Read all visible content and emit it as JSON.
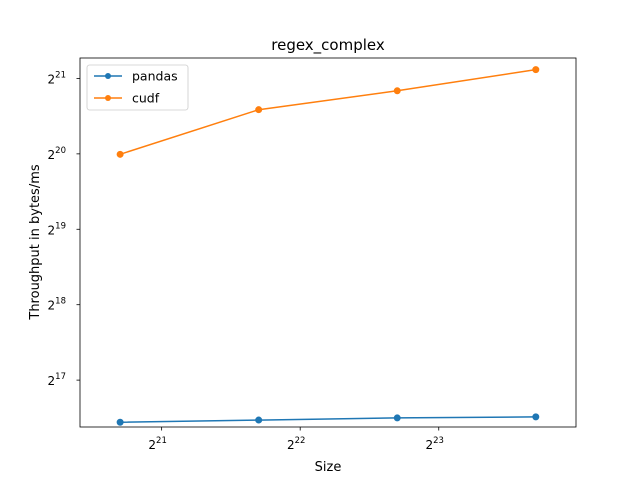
{
  "chart_data": {
    "type": "line",
    "title": "regex_complex",
    "xlabel": "Size",
    "ylabel": "Throughput in bytes/ms",
    "x_scale": "log2",
    "y_scale": "log2",
    "x": [
      1703936,
      3407872,
      6815744,
      13631488
    ],
    "xlim": [
      1394012,
      16668074
    ],
    "ylim": [
      85190,
      2530600
    ],
    "x_ticks": [
      {
        "value": 2097152,
        "base": "2",
        "exp": "21"
      },
      {
        "value": 4194304,
        "base": "2",
        "exp": "22"
      },
      {
        "value": 8388608,
        "base": "2",
        "exp": "23"
      }
    ],
    "y_ticks": [
      {
        "value": 131072,
        "base": "2",
        "exp": "17"
      },
      {
        "value": 262144,
        "base": "2",
        "exp": "18"
      },
      {
        "value": 524288,
        "base": "2",
        "exp": "19"
      },
      {
        "value": 1048576,
        "base": "2",
        "exp": "20"
      },
      {
        "value": 2097152,
        "base": "2",
        "exp": "21"
      }
    ],
    "series": [
      {
        "name": "pandas",
        "color": "#1f77b4",
        "values": [
          89000,
          90800,
          92600,
          93500
        ]
      },
      {
        "name": "cudf",
        "color": "#ff7f0e",
        "values": [
          1044000,
          1574000,
          1872000,
          2274000
        ]
      }
    ],
    "legend": "top-left",
    "grid": false
  }
}
